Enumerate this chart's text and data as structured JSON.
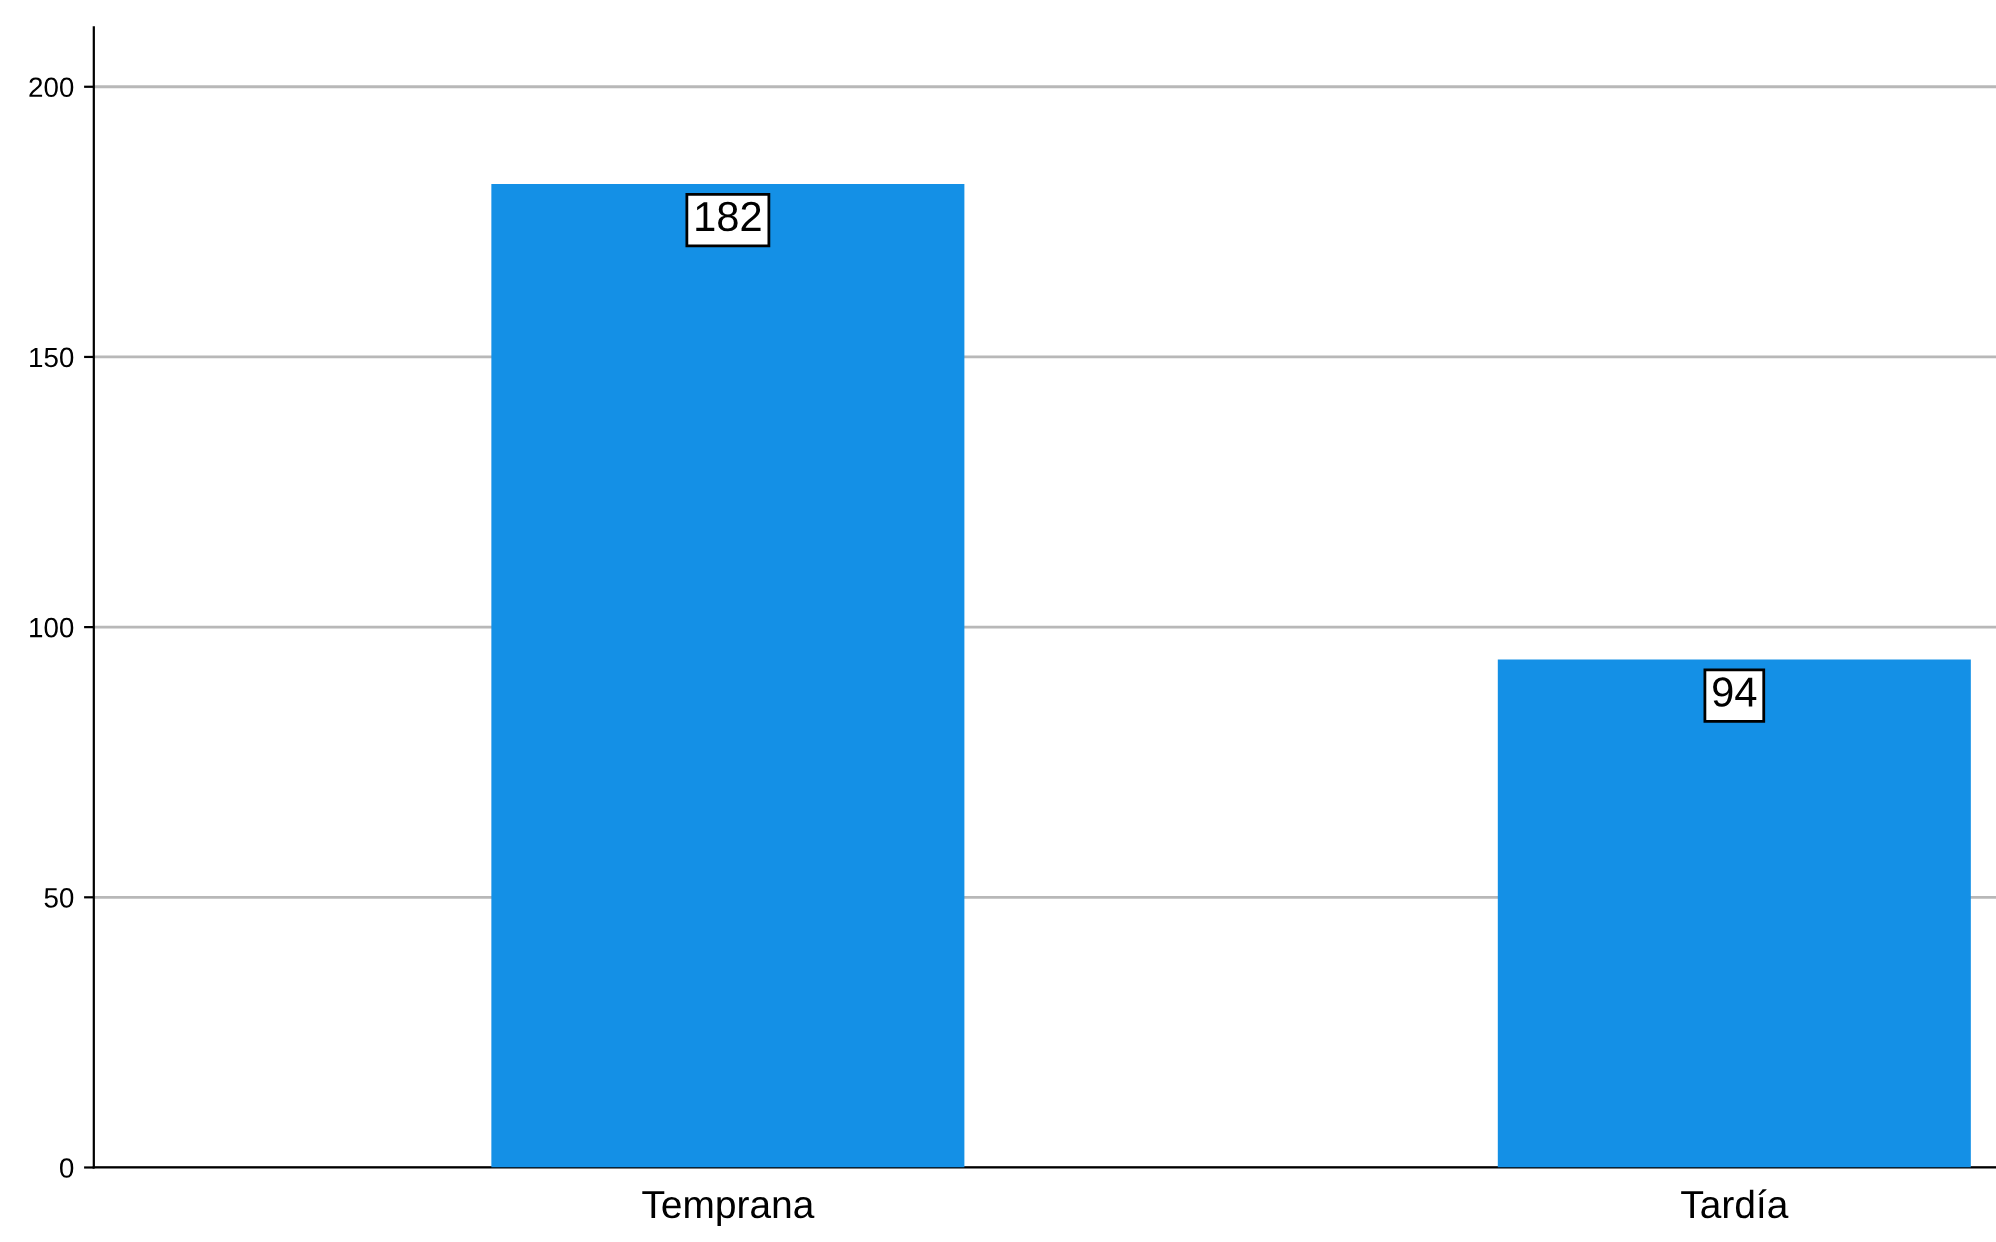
{
  "chart_data": {
    "type": "bar",
    "categories": [
      "Temprana",
      "Tardía"
    ],
    "values": [
      182,
      94
    ],
    "color": "#1490e6",
    "ylim": [
      0,
      211
    ],
    "yticks": [
      0,
      50,
      100,
      150,
      200
    ],
    "grid": "y",
    "data_labels": true
  }
}
